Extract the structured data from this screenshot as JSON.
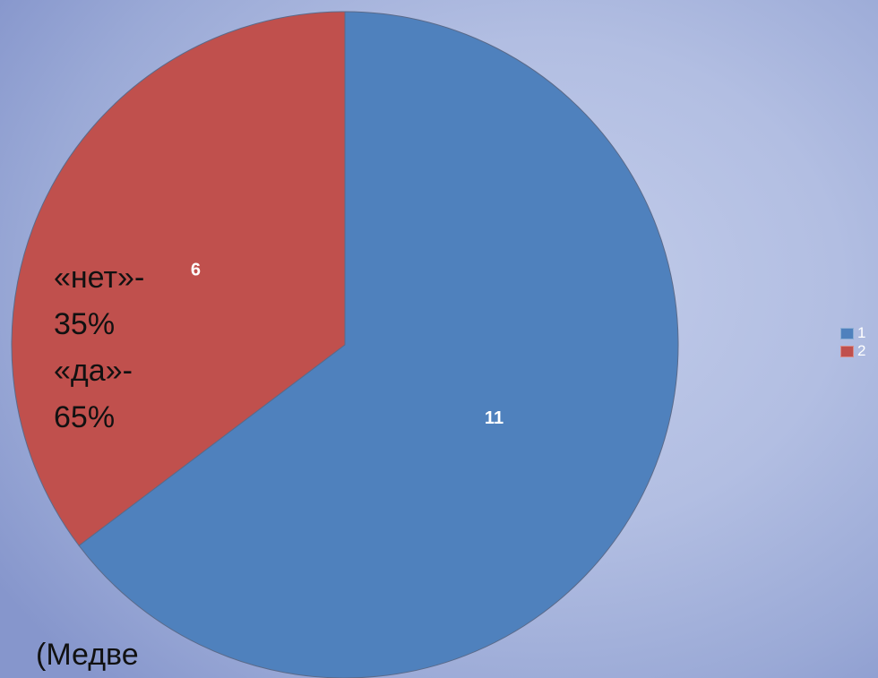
{
  "chart_data": {
    "type": "pie",
    "categories": [
      "1",
      "2"
    ],
    "values": [
      11,
      6
    ],
    "data_labels": [
      "11",
      "6"
    ],
    "colors": [
      "#4f81bd",
      "#c0504d"
    ],
    "start": "12 o'clock",
    "direction": "clockwise",
    "legend_position": "right",
    "title": ""
  },
  "legend": {
    "items": [
      {
        "label": "1",
        "color": "#4f81bd"
      },
      {
        "label": "2",
        "color": "#c0504d"
      }
    ]
  },
  "annotation": {
    "lines": [
      "«нет»-",
      "35%",
      "«да»-",
      "65%"
    ]
  },
  "source_note": "(Медве"
}
